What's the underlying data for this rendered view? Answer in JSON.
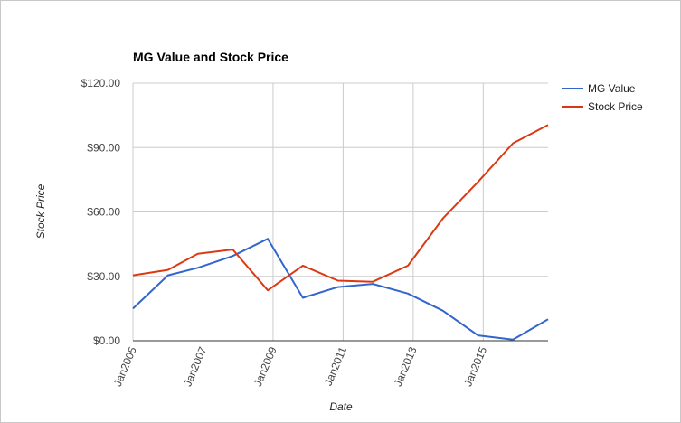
{
  "chart_data": {
    "type": "line",
    "title": "MG Value and Stock Price",
    "xlabel": "Date",
    "ylabel": "Stock Price",
    "xlim": [
      2005.0,
      2016.85
    ],
    "ylim": [
      0,
      120
    ],
    "x_ticks": [
      {
        "label": "Jan2005",
        "x": 2005
      },
      {
        "label": "Jan2007",
        "x": 2007
      },
      {
        "label": "Jan2009",
        "x": 2009
      },
      {
        "label": "Jan2011",
        "x": 2011
      },
      {
        "label": "Jan2013",
        "x": 2013
      },
      {
        "label": "Jan2015",
        "x": 2015
      }
    ],
    "y_ticks": [
      {
        "label": "$0.00",
        "y": 0
      },
      {
        "label": "$30.00",
        "y": 30
      },
      {
        "label": "$60.00",
        "y": 60
      },
      {
        "label": "$90.00",
        "y": 90
      },
      {
        "label": "$120.00",
        "y": 120
      }
    ],
    "grid": true,
    "legend_position": "right",
    "series": [
      {
        "name": "MG Value",
        "color": "#3366cc",
        "x": [
          2005.0,
          2006.0,
          2006.85,
          2007.85,
          2008.85,
          2009.85,
          2010.85,
          2011.85,
          2012.85,
          2013.85,
          2014.85,
          2015.85,
          2016.85
        ],
        "y": [
          15.0,
          30.5,
          34.0,
          39.5,
          47.5,
          20.0,
          25.0,
          26.5,
          22.0,
          14.0,
          2.5,
          0.5,
          10.0
        ]
      },
      {
        "name": "Stock Price",
        "color": "#dc3912",
        "x": [
          2005.0,
          2006.0,
          2006.85,
          2007.85,
          2008.85,
          2009.85,
          2010.85,
          2011.85,
          2012.85,
          2013.85,
          2014.85,
          2015.85,
          2016.85
        ],
        "y": [
          30.5,
          33.0,
          40.5,
          42.5,
          23.5,
          35.0,
          28.0,
          27.5,
          35.0,
          57.0,
          74.0,
          92.0,
          100.5
        ]
      }
    ]
  }
}
